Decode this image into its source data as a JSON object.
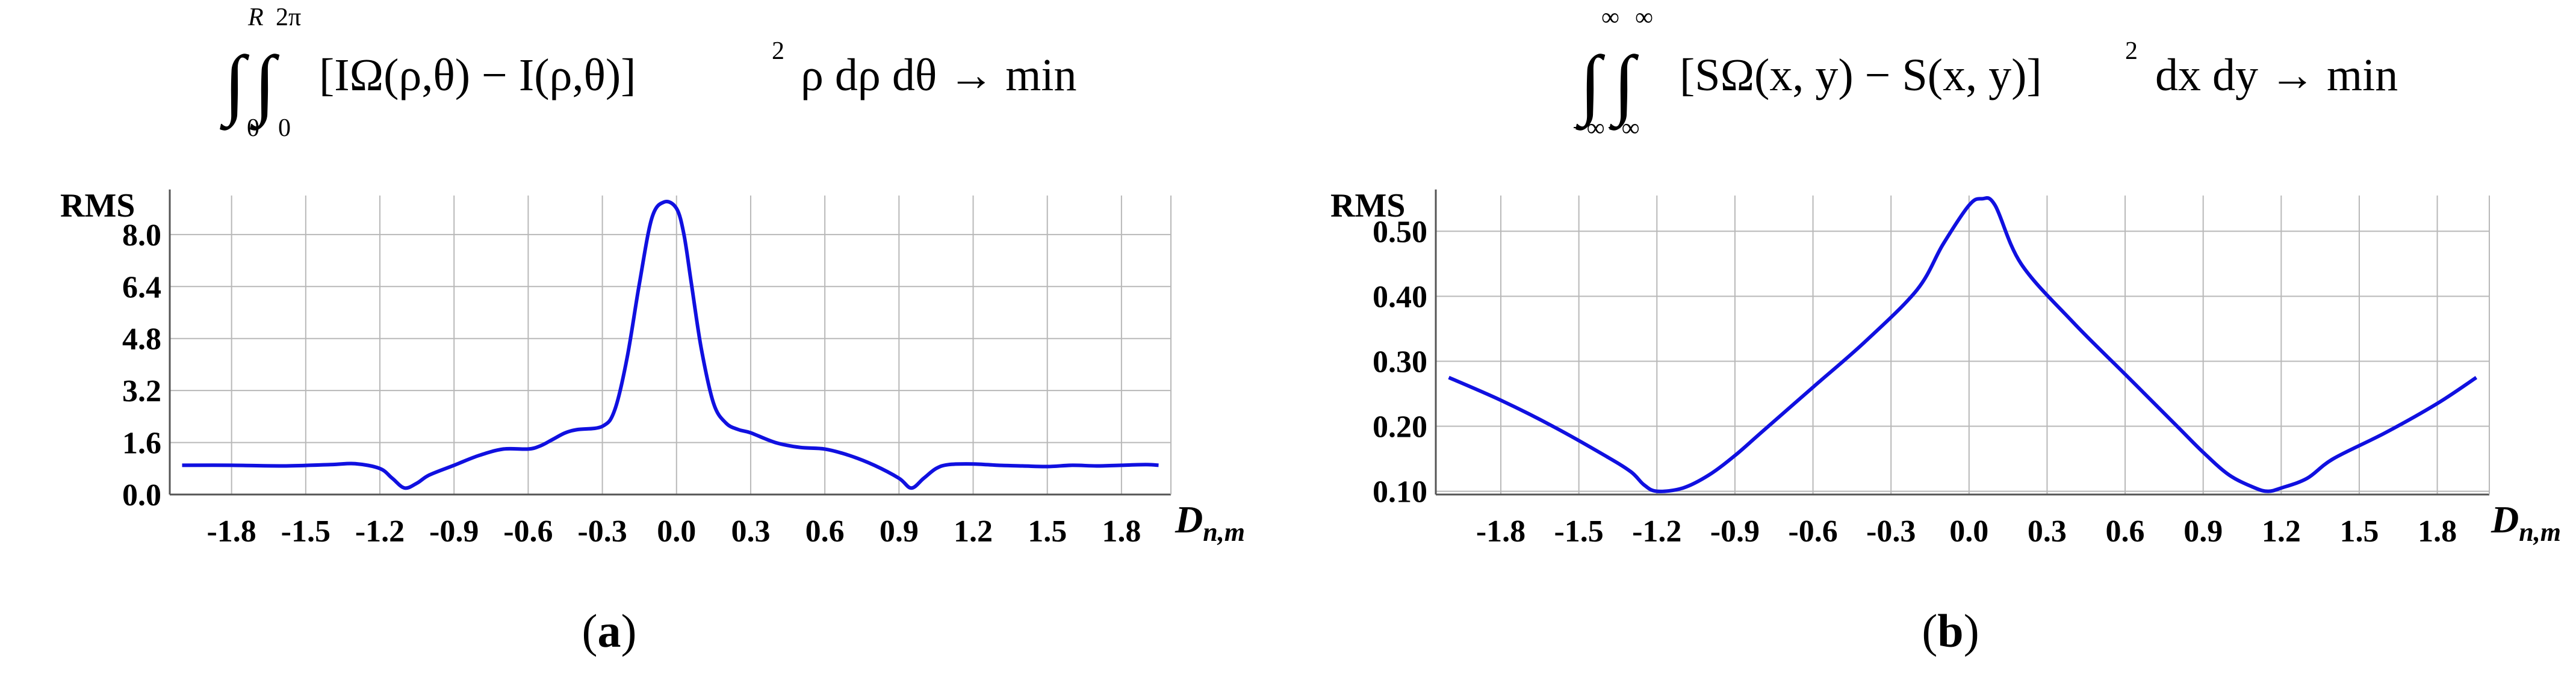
{
  "formulas": {
    "a": {
      "upper_outer": "R",
      "lower_outer": "0",
      "upper_inner": "2π",
      "lower_inner": "0",
      "integrand": "[IΩ(ρ,θ) − I(ρ,θ)]",
      "power": "2",
      "tail": "ρ dρ dθ → min"
    },
    "b": {
      "upper_outer": "∞",
      "lower_outer": "−∞",
      "upper_inner": "∞",
      "lower_inner": "−∞",
      "integrand": "[SΩ(x, y) − S(x, y)]",
      "power": "2",
      "tail": "dx dy → min"
    }
  },
  "captions": {
    "a": "(a)",
    "b": "(b)"
  },
  "colors": {
    "line": "#1010e0",
    "grid": "#b8b8b8",
    "axis": "#555555"
  },
  "chart_data": [
    {
      "type": "line",
      "panel": "a",
      "ylabel": "RMS",
      "xlabel": "Dn,m",
      "xlim": [
        -2.05,
        2.0
      ],
      "ylim": [
        0.0,
        9.2
      ],
      "xticks": [
        -1.8,
        -1.5,
        -1.2,
        -0.9,
        -0.6,
        -0.3,
        0.0,
        0.3,
        0.6,
        0.9,
        1.2,
        1.5,
        1.8
      ],
      "xtick_labels": [
        "-1.8",
        "-1.5",
        "-1.2",
        "-0.9",
        "-0.6",
        "-0.3",
        "0.0",
        "0.3",
        "0.6",
        "0.9",
        "1.2",
        "1.5",
        "1.8"
      ],
      "yticks": [
        0.0,
        1.6,
        3.2,
        4.8,
        6.4,
        8.0
      ],
      "ytick_labels": [
        "0.0",
        "1.6",
        "3.2",
        "4.8",
        "6.4",
        "8.0"
      ],
      "grid": true,
      "x": [
        -2.0,
        -1.8,
        -1.6,
        -1.4,
        -1.3,
        -1.2,
        -1.15,
        -1.1,
        -1.05,
        -1.0,
        -0.9,
        -0.8,
        -0.7,
        -0.6,
        -0.55,
        -0.5,
        -0.45,
        -0.4,
        -0.3,
        -0.25,
        -0.2,
        -0.15,
        -0.1,
        -0.05,
        0.0,
        0.03,
        0.06,
        0.1,
        0.15,
        0.2,
        0.25,
        0.3,
        0.4,
        0.5,
        0.6,
        0.7,
        0.8,
        0.9,
        0.95,
        1.0,
        1.05,
        1.1,
        1.2,
        1.3,
        1.4,
        1.5,
        1.6,
        1.7,
        1.8,
        1.9,
        1.95
      ],
      "y": [
        0.9,
        0.9,
        0.88,
        0.92,
        0.95,
        0.8,
        0.5,
        0.2,
        0.35,
        0.6,
        0.9,
        1.2,
        1.4,
        1.4,
        1.5,
        1.7,
        1.9,
        2.0,
        2.1,
        2.6,
        4.2,
        6.5,
        8.5,
        9.0,
        8.8,
        8.0,
        6.5,
        4.5,
        2.8,
        2.2,
        2.0,
        1.9,
        1.6,
        1.45,
        1.4,
        1.2,
        0.9,
        0.5,
        0.2,
        0.5,
        0.8,
        0.92,
        0.94,
        0.9,
        0.88,
        0.86,
        0.9,
        0.88,
        0.9,
        0.92,
        0.9
      ]
    },
    {
      "type": "line",
      "panel": "b",
      "ylabel": "RMS",
      "xlabel": "Dn,m",
      "xlim": [
        -2.05,
        2.0
      ],
      "ylim": [
        0.095,
        0.555
      ],
      "xticks": [
        -1.8,
        -1.5,
        -1.2,
        -0.9,
        -0.6,
        -0.3,
        0.0,
        0.3,
        0.6,
        0.9,
        1.2,
        1.5,
        1.8
      ],
      "xtick_labels": [
        "-1.8",
        "-1.5",
        "-1.2",
        "-0.9",
        "-0.6",
        "-0.3",
        "0.0",
        "0.3",
        "0.6",
        "0.9",
        "1.2",
        "1.5",
        "1.8"
      ],
      "yticks": [
        0.1,
        0.2,
        0.3,
        0.4,
        0.5
      ],
      "ytick_labels": [
        "0.10",
        "0.20",
        "0.30",
        "0.40",
        "0.50"
      ],
      "grid": true,
      "x": [
        -2.0,
        -1.8,
        -1.6,
        -1.4,
        -1.3,
        -1.25,
        -1.2,
        -1.1,
        -1.0,
        -0.9,
        -0.8,
        -0.6,
        -0.4,
        -0.2,
        -0.1,
        0.0,
        0.05,
        0.1,
        0.2,
        0.4,
        0.6,
        0.8,
        0.9,
        1.0,
        1.1,
        1.15,
        1.2,
        1.3,
        1.4,
        1.6,
        1.8,
        1.95
      ],
      "y": [
        0.275,
        0.24,
        0.2,
        0.155,
        0.13,
        0.11,
        0.1,
        0.105,
        0.125,
        0.155,
        0.19,
        0.26,
        0.33,
        0.41,
        0.48,
        0.54,
        0.55,
        0.54,
        0.45,
        0.36,
        0.28,
        0.2,
        0.16,
        0.125,
        0.105,
        0.1,
        0.105,
        0.12,
        0.15,
        0.19,
        0.235,
        0.275
      ]
    }
  ]
}
